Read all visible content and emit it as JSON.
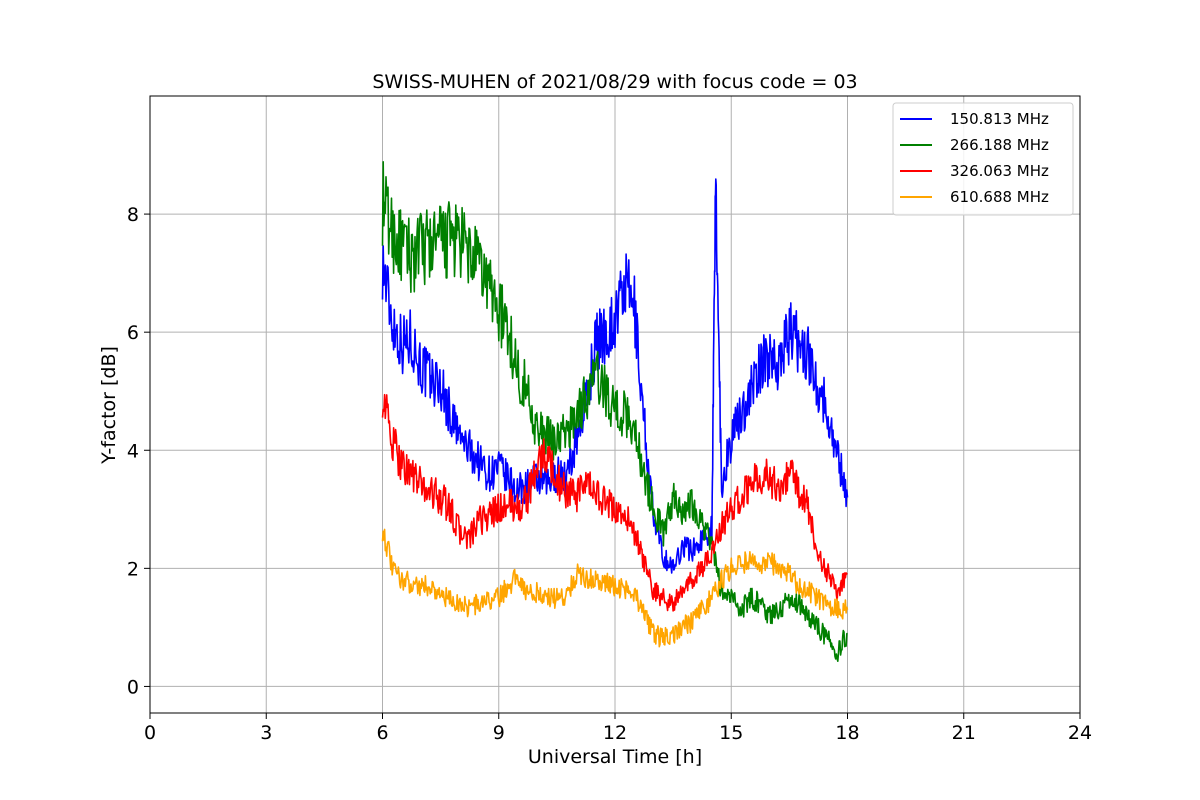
{
  "chart_data": {
    "type": "line",
    "title": "SWISS-MUHEN of 2021/08/29 with focus code = 03",
    "xlabel": "Universal Time [h]",
    "ylabel": "Y-factor [dB]",
    "xlim": [
      0,
      24
    ],
    "ylim": [
      -0.45,
      10
    ],
    "xticks": [
      0,
      3,
      6,
      9,
      12,
      15,
      18,
      21,
      24
    ],
    "xtick_labels": [
      "0",
      "3",
      "6",
      "9",
      "12",
      "15",
      "18",
      "21",
      "24"
    ],
    "yticks": [
      0,
      2,
      4,
      6,
      8
    ],
    "ytick_labels": [
      "0",
      "2",
      "4",
      "6",
      "8"
    ],
    "grid": true,
    "legend_position": "top-right",
    "series": [
      {
        "name": "150.813 MHz",
        "color": "#0000ff",
        "x": [
          6.0,
          6.25,
          6.5,
          6.75,
          7.0,
          7.25,
          7.5,
          7.75,
          8.0,
          8.25,
          8.5,
          8.75,
          9.0,
          9.25,
          9.5,
          9.75,
          10.0,
          10.25,
          10.5,
          10.75,
          11.0,
          11.25,
          11.5,
          11.75,
          12.0,
          12.25,
          12.5,
          12.75,
          13.0,
          13.25,
          13.5,
          13.75,
          14.0,
          14.25,
          14.5,
          14.6,
          14.75,
          15.0,
          15.25,
          15.5,
          15.75,
          16.0,
          16.25,
          16.5,
          16.75,
          17.0,
          17.25,
          17.5,
          17.75,
          18.0
        ],
        "y": [
          7.2,
          6.2,
          5.8,
          5.9,
          5.4,
          5.2,
          5.1,
          4.6,
          4.2,
          4.0,
          3.8,
          3.6,
          3.7,
          3.5,
          3.3,
          3.4,
          3.5,
          3.4,
          3.6,
          3.5,
          4.2,
          4.8,
          5.8,
          6.0,
          6.2,
          6.8,
          6.4,
          4.5,
          2.8,
          2.2,
          2.0,
          2.4,
          2.3,
          2.5,
          2.7,
          8.6,
          3.4,
          4.2,
          4.6,
          5.0,
          5.4,
          5.6,
          5.5,
          6.0,
          5.8,
          5.6,
          5.1,
          4.6,
          3.9,
          3.2
        ]
      },
      {
        "name": "266.188 MHz",
        "color": "#008000",
        "x": [
          6.0,
          6.25,
          6.5,
          6.75,
          7.0,
          7.25,
          7.5,
          7.75,
          8.0,
          8.25,
          8.5,
          8.75,
          9.0,
          9.25,
          9.5,
          9.75,
          10.0,
          10.25,
          10.5,
          10.75,
          11.0,
          11.25,
          11.5,
          11.75,
          12.0,
          12.25,
          12.5,
          12.75,
          13.0,
          13.25,
          13.5,
          13.75,
          14.0,
          14.25,
          14.5,
          14.75,
          15.0,
          15.25,
          15.5,
          15.75,
          16.0,
          16.25,
          16.5,
          16.75,
          17.0,
          17.25,
          17.5,
          17.75,
          18.0
        ],
        "y": [
          8.2,
          7.7,
          7.4,
          7.3,
          7.4,
          7.5,
          7.5,
          7.6,
          7.5,
          7.3,
          7.1,
          6.8,
          6.4,
          6.0,
          5.3,
          5.0,
          4.3,
          4.2,
          4.2,
          4.3,
          4.6,
          4.9,
          5.3,
          5.0,
          4.7,
          4.6,
          4.4,
          3.6,
          3.0,
          2.6,
          3.2,
          3.0,
          3.1,
          2.8,
          2.4,
          1.6,
          1.5,
          1.3,
          1.5,
          1.4,
          1.2,
          1.3,
          1.5,
          1.4,
          1.2,
          1.0,
          0.8,
          0.6,
          0.9
        ]
      },
      {
        "name": "326.063 MHz",
        "color": "#ff0000",
        "x": [
          6.0,
          6.25,
          6.5,
          6.75,
          7.0,
          7.25,
          7.5,
          7.75,
          8.0,
          8.25,
          8.5,
          8.75,
          9.0,
          9.25,
          9.5,
          9.75,
          10.0,
          10.25,
          10.5,
          10.75,
          11.0,
          11.25,
          11.5,
          11.75,
          12.0,
          12.25,
          12.5,
          12.75,
          13.0,
          13.25,
          13.5,
          13.75,
          14.0,
          14.25,
          14.5,
          14.75,
          15.0,
          15.25,
          15.5,
          15.75,
          16.0,
          16.25,
          16.5,
          16.75,
          17.0,
          17.25,
          17.5,
          17.75,
          18.0
        ],
        "y": [
          5.0,
          4.1,
          3.8,
          3.6,
          3.4,
          3.3,
          3.2,
          3.0,
          2.6,
          2.5,
          2.8,
          2.9,
          3.0,
          3.1,
          3.0,
          3.2,
          3.8,
          3.9,
          3.5,
          3.3,
          3.2,
          3.4,
          3.3,
          3.1,
          3.0,
          2.9,
          2.6,
          2.1,
          1.6,
          1.5,
          1.4,
          1.6,
          1.8,
          2.0,
          2.3,
          2.7,
          3.0,
          3.2,
          3.4,
          3.6,
          3.5,
          3.4,
          3.6,
          3.3,
          3.0,
          2.2,
          1.9,
          1.6,
          1.9
        ]
      },
      {
        "name": "610.688 MHz",
        "color": "#ffa500",
        "x": [
          6.0,
          6.25,
          6.5,
          6.75,
          7.0,
          7.25,
          7.5,
          7.75,
          8.0,
          8.25,
          8.5,
          8.75,
          9.0,
          9.25,
          9.5,
          9.75,
          10.0,
          10.25,
          10.5,
          10.75,
          11.0,
          11.25,
          11.5,
          11.75,
          12.0,
          12.25,
          12.5,
          12.75,
          13.0,
          13.25,
          13.5,
          13.75,
          14.0,
          14.25,
          14.5,
          14.75,
          15.0,
          15.25,
          15.5,
          15.75,
          16.0,
          16.25,
          16.5,
          16.75,
          17.0,
          17.25,
          17.5,
          17.75,
          18.0
        ],
        "y": [
          2.7,
          2.0,
          1.8,
          1.75,
          1.7,
          1.7,
          1.55,
          1.45,
          1.4,
          1.35,
          1.4,
          1.45,
          1.5,
          1.7,
          1.9,
          1.55,
          1.6,
          1.5,
          1.5,
          1.55,
          1.9,
          1.85,
          1.8,
          1.75,
          1.7,
          1.65,
          1.6,
          1.2,
          0.9,
          0.8,
          0.9,
          1.0,
          1.1,
          1.3,
          1.5,
          1.8,
          2.0,
          2.1,
          2.1,
          2.0,
          2.1,
          2.0,
          1.9,
          1.7,
          1.6,
          1.5,
          1.4,
          1.3,
          1.3
        ]
      }
    ]
  }
}
